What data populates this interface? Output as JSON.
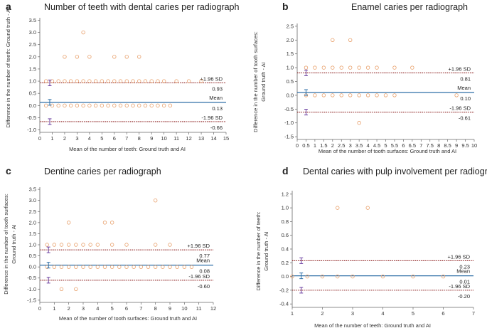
{
  "colors": {
    "points": "#e8a06b",
    "mean_line": "#2f6fa7",
    "sd_line": "#8b1c1c",
    "error_bar": "#6a3fa0",
    "axis": "#666666"
  },
  "chart_data": [
    {
      "type": "scatter",
      "letter": "a",
      "title": "Number of teeth with dental caries per radiograph",
      "xlabel": "Mean of the number of teeth: Ground truth and AI",
      "ylabel_lines": [
        "Difference in the number of teeth: Ground truth - AI"
      ],
      "xlim": [
        0,
        15
      ],
      "ylim": [
        -1.1,
        3.6
      ],
      "xticks": [
        "0",
        "1",
        "2",
        "3",
        "4",
        "5",
        "6",
        "7",
        "8",
        "9",
        "10",
        "11",
        "12",
        "13",
        "14",
        "15"
      ],
      "yticks": [
        "-1.0",
        "-0.5",
        "0.0",
        "0.5",
        "1.0",
        "1.5",
        "2.0",
        "2.5",
        "3.0",
        "3.5"
      ],
      "upper_label": "+1.96 SD",
      "upper_value": "0.93",
      "mean_label": "Mean",
      "mean_value": "0.13",
      "lower_label": "-1.96 SD",
      "lower_value": "-0.66",
      "upper_y": 0.93,
      "mean_y": 0.13,
      "lower_y": -0.66,
      "ci_x": 0.8,
      "points": [
        [
          0.5,
          0
        ],
        [
          1,
          0
        ],
        [
          1.5,
          0
        ],
        [
          2,
          0
        ],
        [
          2.5,
          0
        ],
        [
          3,
          0
        ],
        [
          3.5,
          0
        ],
        [
          4,
          0
        ],
        [
          4.5,
          0
        ],
        [
          5,
          0
        ],
        [
          5.5,
          0
        ],
        [
          6,
          0
        ],
        [
          6.5,
          0
        ],
        [
          7,
          0
        ],
        [
          7.5,
          0
        ],
        [
          8,
          0
        ],
        [
          8.5,
          0
        ],
        [
          9,
          0
        ],
        [
          9.5,
          0
        ],
        [
          10,
          0
        ],
        [
          10.5,
          0
        ],
        [
          0.5,
          1
        ],
        [
          1,
          1
        ],
        [
          1.5,
          1
        ],
        [
          2,
          1
        ],
        [
          2.5,
          1
        ],
        [
          3,
          1
        ],
        [
          3.5,
          1
        ],
        [
          4,
          1
        ],
        [
          4.5,
          1
        ],
        [
          5,
          1
        ],
        [
          5.5,
          1
        ],
        [
          6,
          1
        ],
        [
          6.5,
          1
        ],
        [
          7,
          1
        ],
        [
          7.5,
          1
        ],
        [
          8,
          1
        ],
        [
          8.5,
          1
        ],
        [
          9,
          1
        ],
        [
          9.5,
          1
        ],
        [
          10,
          1
        ],
        [
          11,
          1
        ],
        [
          12,
          1
        ],
        [
          13,
          1
        ],
        [
          2,
          2
        ],
        [
          3,
          2
        ],
        [
          4,
          2
        ],
        [
          6,
          2
        ],
        [
          7,
          2
        ],
        [
          8,
          2
        ],
        [
          3.5,
          3
        ]
      ]
    },
    {
      "type": "scatter",
      "letter": "b",
      "title": "Enamel caries per radiograph",
      "xlabel": "Mean of the number of tooth surfaces: Ground truth and AI",
      "ylabel_lines": [
        "Difference in the number of tooth surfaces:",
        "Ground truth - AI"
      ],
      "xlim": [
        0,
        10
      ],
      "ylim": [
        -1.6,
        2.6
      ],
      "xticks": [
        "0",
        "0.5",
        "1",
        "1.5",
        "2",
        "2.5",
        "3",
        "3.5",
        "4",
        "4.5",
        "5",
        "5.5",
        "6",
        "6.5",
        "7",
        "7.5",
        "8",
        "8.5",
        "9",
        "9.5",
        "10"
      ],
      "yticks": [
        "-1.5",
        "-1.0",
        "-0.5",
        "0.0",
        "0.5",
        "1.0",
        "1.5",
        "2.0",
        "2.5"
      ],
      "upper_label": "+1.96 SD",
      "upper_value": "0.81",
      "mean_label": "Mean",
      "mean_value": "0.10",
      "lower_label": "-1.96 SD",
      "lower_value": "-0.61",
      "upper_y": 0.81,
      "mean_y": 0.1,
      "lower_y": -0.61,
      "ci_x": 0.5,
      "points": [
        [
          0.5,
          0
        ],
        [
          1,
          0
        ],
        [
          1.5,
          0
        ],
        [
          2,
          0
        ],
        [
          2.5,
          0
        ],
        [
          3,
          0
        ],
        [
          3.5,
          0
        ],
        [
          4,
          0
        ],
        [
          4.5,
          0
        ],
        [
          5,
          0
        ],
        [
          5.5,
          0
        ],
        [
          9,
          0
        ],
        [
          0.5,
          1
        ],
        [
          1,
          1
        ],
        [
          1.5,
          1
        ],
        [
          2,
          1
        ],
        [
          2.5,
          1
        ],
        [
          3,
          1
        ],
        [
          3.5,
          1
        ],
        [
          4,
          1
        ],
        [
          4.5,
          1
        ],
        [
          5.5,
          1
        ],
        [
          6.5,
          1
        ],
        [
          2,
          2
        ],
        [
          3,
          2
        ],
        [
          3.5,
          -1
        ]
      ]
    },
    {
      "type": "scatter",
      "letter": "c",
      "title": "Dentine caries per radiograph",
      "xlabel": "Mean of the number of tooth surfaces: Ground truth and AI",
      "ylabel_lines": [
        "Difference in the number of tooth surfaces:",
        "Ground truth - AI"
      ],
      "xlim": [
        0,
        12
      ],
      "ylim": [
        -1.6,
        3.6
      ],
      "xticks": [
        "0",
        "1",
        "2",
        "3",
        "4",
        "5",
        "6",
        "7",
        "8",
        "9",
        "10",
        "11",
        "12"
      ],
      "yticks": [
        "-1.5",
        "-1.0",
        "-0.5",
        "0.0",
        "0.5",
        "1.0",
        "1.5",
        "2.0",
        "2.5",
        "3.0",
        "3.5"
      ],
      "upper_label": "+1.96 SD",
      "upper_value": "0.77",
      "mean_label": "Mean",
      "mean_value": "0.08",
      "lower_label": "-1.96 SD",
      "lower_value": "-0.60",
      "upper_y": 0.77,
      "mean_y": 0.08,
      "lower_y": -0.6,
      "ci_x": 0.6,
      "points": [
        [
          0.5,
          0
        ],
        [
          1,
          0
        ],
        [
          1.5,
          0
        ],
        [
          2,
          0
        ],
        [
          2.5,
          0
        ],
        [
          3,
          0
        ],
        [
          3.5,
          0
        ],
        [
          4,
          0
        ],
        [
          4.5,
          0
        ],
        [
          5,
          0
        ],
        [
          5.5,
          0
        ],
        [
          6,
          0
        ],
        [
          6.5,
          0
        ],
        [
          7,
          0
        ],
        [
          7.5,
          0
        ],
        [
          8,
          0
        ],
        [
          8.5,
          0
        ],
        [
          9,
          0
        ],
        [
          9.5,
          0
        ],
        [
          10,
          0
        ],
        [
          10.5,
          0
        ],
        [
          0.5,
          1
        ],
        [
          1,
          1
        ],
        [
          1.5,
          1
        ],
        [
          2,
          1
        ],
        [
          2.5,
          1
        ],
        [
          3,
          1
        ],
        [
          3.5,
          1
        ],
        [
          4,
          1
        ],
        [
          5,
          1
        ],
        [
          6,
          1
        ],
        [
          8,
          1
        ],
        [
          9,
          1
        ],
        [
          2,
          2
        ],
        [
          4.5,
          2
        ],
        [
          5,
          2
        ],
        [
          8,
          3
        ],
        [
          1.5,
          -1
        ],
        [
          2.5,
          -1
        ]
      ]
    },
    {
      "type": "scatter",
      "letter": "d",
      "title": "Dental caries with pulp involvement per radiograph",
      "xlabel": "Mean of the number of teeth: Ground truth and AI",
      "ylabel_lines": [
        "Difference in the number of teeth:",
        "Ground truth - AI"
      ],
      "xlim": [
        1,
        7
      ],
      "ylim": [
        -0.45,
        1.25
      ],
      "xticks": [
        "1",
        "2",
        "3",
        "4",
        "5",
        "6",
        "7"
      ],
      "yticks": [
        "-0.4",
        "-0.2",
        "0.0",
        "0.2",
        "0.4",
        "0.6",
        "0.8",
        "1.0",
        "1.2"
      ],
      "upper_label": "+1.96 SD",
      "upper_value": "0.23",
      "mean_label": "Mean",
      "mean_value": "0.01",
      "lower_label": "-1.96 SD",
      "lower_value": "-0.20",
      "upper_y": 0.23,
      "mean_y": 0.01,
      "lower_y": -0.2,
      "ci_x": 1.3,
      "points": [
        [
          1,
          0
        ],
        [
          1.5,
          0
        ],
        [
          2,
          0
        ],
        [
          2.5,
          0
        ],
        [
          3,
          0
        ],
        [
          4,
          0
        ],
        [
          5,
          0
        ],
        [
          6,
          0
        ],
        [
          2.5,
          1
        ],
        [
          3.5,
          1
        ]
      ]
    }
  ]
}
